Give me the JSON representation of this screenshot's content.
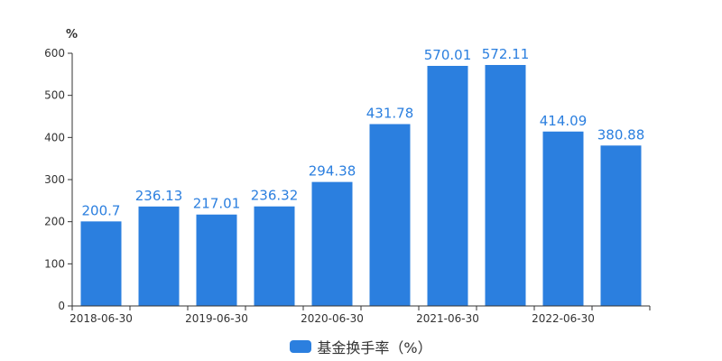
{
  "chart_data": {
    "type": "bar",
    "ylabel": "%",
    "ylim": [
      0,
      600
    ],
    "yticks": [
      0,
      100,
      200,
      300,
      400,
      500,
      600
    ],
    "xtick_labels": [
      "2018-06-30",
      "2019-06-30",
      "2020-06-30",
      "2021-06-30",
      "2022-06-30"
    ],
    "series": [
      {
        "name": "基金换手率（%）",
        "color": "#2b7fdf",
        "values": [
          200.7,
          236.13,
          217.01,
          236.32,
          294.38,
          431.78,
          570.01,
          572.11,
          414.09,
          380.88
        ],
        "labels": [
          "200.7",
          "236.13",
          "217.01",
          "236.32",
          "294.38",
          "431.78",
          "570.01",
          "572.11",
          "414.09",
          "380.88"
        ]
      }
    ],
    "grid": false,
    "legend_position": "bottom-center"
  }
}
